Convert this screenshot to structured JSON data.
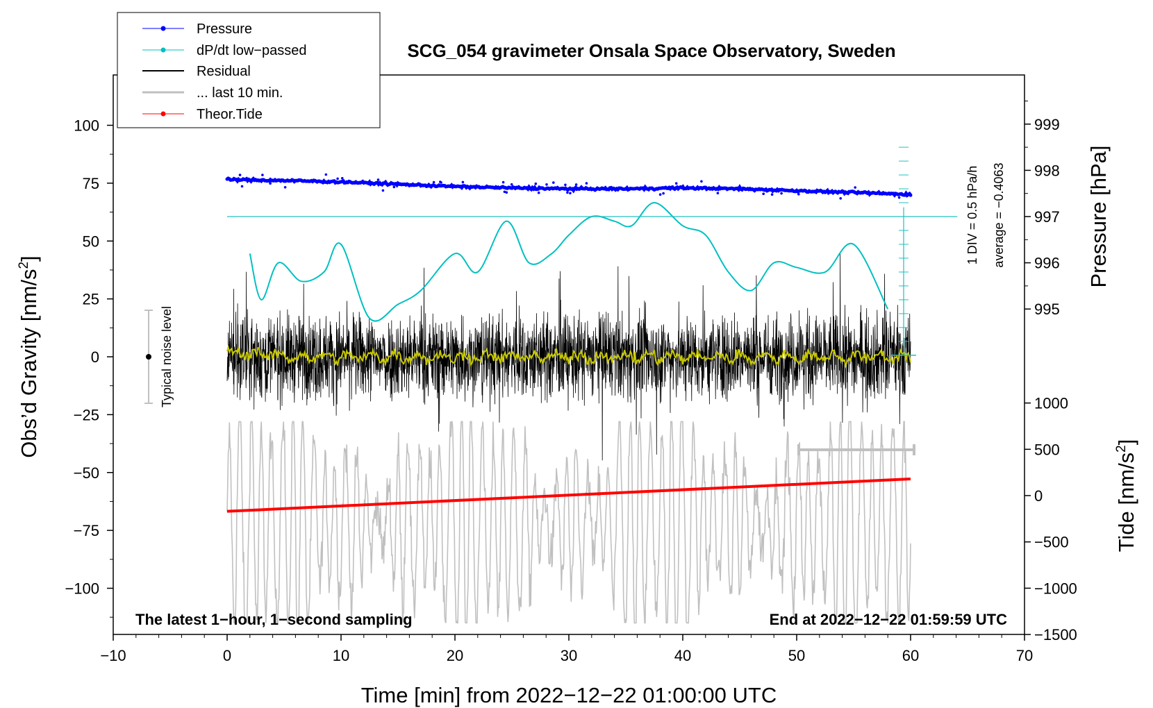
{
  "chart_data": {
    "type": "line",
    "title": "SCG_054 gravimeter Onsala Space Observatory, Sweden",
    "xlabel": "Time [min] from 2022−12−22 01:00:00 UTC",
    "ylabel_left": "Obs’d Gravity [nm/s",
    "ylabel_left_sup": "2",
    "ylabel_left_close": "]",
    "ylabel_right_pressure": "Pressure [hPa]",
    "ylabel_right_tide": "Tide [nm/s",
    "ylabel_right_tide_sup": "2",
    "ylabel_right_tide_close": "]",
    "xlim": [
      -10,
      70
    ],
    "ylim_left": [
      -120,
      120
    ],
    "pressure_lim": [
      995,
      999
    ],
    "tide_lim": [
      -1500,
      1000
    ],
    "x_ticks": [
      "−10",
      "0",
      "10",
      "20",
      "30",
      "40",
      "50",
      "60",
      "70"
    ],
    "y_ticks_left": [
      "100",
      "75",
      "50",
      "25",
      "0",
      "−25",
      "−50",
      "−75",
      "−100"
    ],
    "y_ticks_pressure": [
      "999",
      "998",
      "997",
      "996",
      "995"
    ],
    "y_ticks_tide": [
      "1000",
      "500",
      "0",
      "−500",
      "−1000",
      "−1500"
    ],
    "series": [
      {
        "name": "Pressure",
        "color": "#0000ff",
        "unit": "hPa",
        "x": [
          0,
          5,
          10,
          15,
          20,
          25,
          30,
          35,
          40,
          45,
          50,
          55,
          60
        ],
        "values": [
          997.8,
          997.78,
          997.75,
          997.7,
          997.65,
          997.62,
          997.6,
          997.6,
          997.62,
          997.6,
          997.56,
          997.52,
          997.48
        ]
      },
      {
        "name": "dP/dt low−passed",
        "color": "#00c0c0",
        "unit": "hPa/h",
        "x": [
          2,
          3,
          4.5,
          6.5,
          8.5,
          10,
          12.5,
          15,
          17,
          20,
          22,
          24.5,
          26.5,
          28.5,
          30,
          32,
          34,
          35.5,
          37.5,
          40,
          42,
          44,
          46,
          48,
          50,
          52.5,
          55,
          58
        ],
        "values": [
          -0.4,
          -0.9,
          -0.5,
          -0.7,
          -0.6,
          -0.3,
          -1.1,
          -0.95,
          -0.8,
          -0.4,
          -0.6,
          -0.05,
          -0.5,
          -0.4,
          -0.2,
          0.0,
          -0.05,
          -0.1,
          0.15,
          -0.1,
          -0.2,
          -0.6,
          -0.8,
          -0.5,
          -0.55,
          -0.6,
          -0.3,
          -1.0
        ]
      },
      {
        "name": "Residual",
        "color": "#000000",
        "unit": "nm/s²",
        "x_range": [
          0,
          60
        ],
        "amplitude_typical": 30,
        "amplitude_max": 55
      },
      {
        "name": "... last 10 min.",
        "color": "#c0c0c0",
        "unit": "nm/s²",
        "x_range": [
          50,
          60
        ]
      },
      {
        "name": "Theor.Tide",
        "color": "#ff0000",
        "unit": "nm/s²",
        "x": [
          0,
          60
        ],
        "values": [
          -170,
          180
        ]
      }
    ],
    "dpdt_scale_label": "1 DIV = 0.5 hPa/h",
    "dpdt_average_label": "average = −0.4063",
    "noise_label": "Typical noise level",
    "noise_range": [
      -20,
      20
    ],
    "footer_left": "The latest 1−hour, 1−second sampling",
    "footer_right": "End at 2022−12−22 01:59:59 UTC",
    "legend": {
      "placement": "top-left",
      "entries": [
        "Pressure",
        "dP/dt low−passed",
        "Residual",
        "... last 10 min.",
        "Theor.Tide"
      ]
    },
    "colors": {
      "residual_smooth": "#c8c800",
      "grey_bracket": "#c0c0c0",
      "dpdt_axis": "#20c0c0"
    }
  }
}
